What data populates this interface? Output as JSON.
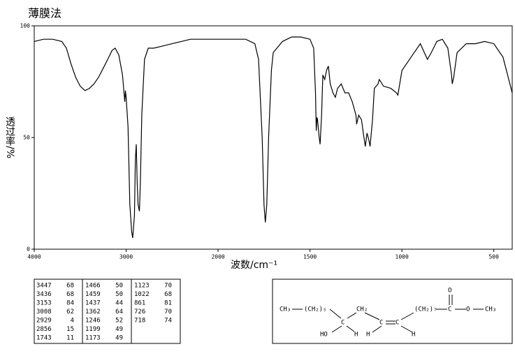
{
  "chart_data": {
    "type": "line",
    "title": "薄膜法",
    "x_label": "波数/cm⁻¹",
    "y_label": "透过率/%",
    "color": "#000000",
    "xlim": [
      4000,
      400
    ],
    "xticks": [
      4000,
      3000,
      2000,
      1500,
      1000,
      500
    ],
    "ylim": [
      0,
      100
    ],
    "yticks": [
      0,
      50,
      100
    ],
    "x": [
      4000,
      3900,
      3800,
      3700,
      3650,
      3600,
      3550,
      3500,
      3447,
      3400,
      3350,
      3300,
      3250,
      3200,
      3153,
      3120,
      3080,
      3040,
      3015,
      3008,
      3000,
      2980,
      2960,
      2940,
      2929,
      2910,
      2900,
      2890,
      2880,
      2870,
      2856,
      2845,
      2830,
      2800,
      2760,
      2700,
      2600,
      2500,
      2400,
      2300,
      2200,
      2100,
      2000,
      1900,
      1850,
      1800,
      1780,
      1760,
      1750,
      1743,
      1735,
      1725,
      1710,
      1700,
      1650,
      1600,
      1550,
      1500,
      1480,
      1470,
      1466,
      1462,
      1459,
      1450,
      1445,
      1437,
      1430,
      1420,
      1410,
      1400,
      1390,
      1375,
      1362,
      1350,
      1330,
      1310,
      1290,
      1270,
      1250,
      1246,
      1235,
      1220,
      1210,
      1199,
      1190,
      1180,
      1173,
      1160,
      1150,
      1130,
      1123,
      1100,
      1060,
      1030,
      1022,
      1000,
      950,
      900,
      861,
      840,
      810,
      780,
      750,
      730,
      726,
      718,
      700,
      650,
      600,
      550,
      500,
      450,
      400
    ],
    "values": [
      93,
      94,
      94,
      93,
      90,
      83,
      77,
      73,
      71,
      72,
      74,
      77,
      81,
      85,
      89,
      90,
      87,
      78,
      66,
      71,
      68,
      55,
      20,
      8,
      5,
      15,
      40,
      47,
      30,
      20,
      17,
      30,
      60,
      85,
      90,
      90,
      91,
      92,
      93,
      94,
      94,
      94,
      94,
      94,
      94,
      92,
      85,
      50,
      20,
      12,
      20,
      50,
      80,
      88,
      93,
      95,
      95,
      94,
      90,
      70,
      53,
      59,
      58,
      50,
      47,
      60,
      78,
      76,
      80,
      82,
      74,
      70,
      68,
      72,
      74,
      70,
      70,
      66,
      60,
      56,
      60,
      58,
      52,
      46,
      52,
      49,
      46,
      58,
      72,
      74,
      76,
      73,
      72,
      70,
      69,
      80,
      86,
      92,
      85,
      88,
      93,
      94,
      90,
      78,
      74,
      77,
      88,
      92,
      92,
      93,
      92,
      86,
      70
    ]
  },
  "peak_table": {
    "groups": [
      [
        [
          3447,
          68
        ],
        [
          3436,
          68
        ],
        [
          3153,
          84
        ],
        [
          3008,
          62
        ],
        [
          2929,
          4
        ],
        [
          2856,
          15
        ],
        [
          1743,
          11
        ]
      ],
      [
        [
          1466,
          50
        ],
        [
          1459,
          50
        ],
        [
          1437,
          44
        ],
        [
          1362,
          64
        ],
        [
          1246,
          52
        ],
        [
          1199,
          49
        ],
        [
          1173,
          49
        ]
      ],
      [
        [
          1123,
          70
        ],
        [
          1022,
          68
        ],
        [
          861,
          81
        ],
        [
          726,
          70
        ],
        [
          718,
          74
        ]
      ]
    ]
  },
  "structure": {
    "atoms": [
      "CH₃",
      "(CH₂)₅",
      "C",
      "HO",
      "H",
      "CH₂",
      "C",
      "H",
      "C",
      "H",
      "(CH₂)₇",
      "C",
      "O",
      "O",
      "CH₃"
    ]
  }
}
